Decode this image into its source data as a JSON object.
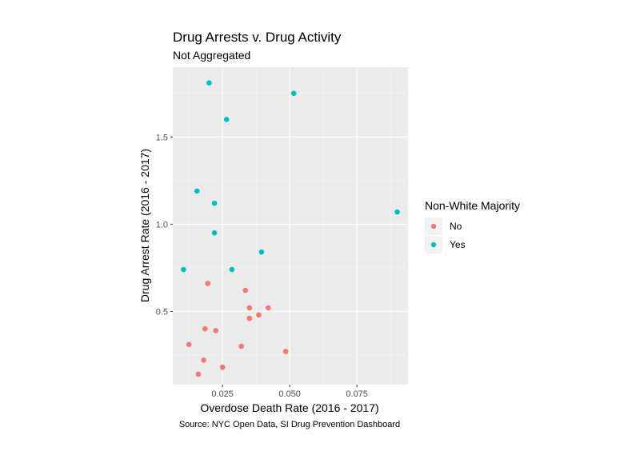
{
  "chart_data": {
    "type": "scatter",
    "title": "Drug Arrests v. Drug Activity",
    "subtitle": "Not Aggregated",
    "xlabel": "Overdose Death Rate (2016 - 2017)",
    "ylabel": "Drug Arrest Rate (2016 - 2017)",
    "caption": "Source: NYC Open Data, SI Drug Prevention Dashboard",
    "xlim": [
      0.0065,
      0.094
    ],
    "ylim": [
      0.08,
      1.9
    ],
    "x_ticks": [
      {
        "value": 0.025,
        "label": "0.025"
      },
      {
        "value": 0.05,
        "label": "0.050"
      },
      {
        "value": 0.075,
        "label": "0.075"
      }
    ],
    "y_ticks": [
      {
        "value": 0.5,
        "label": "0.5"
      },
      {
        "value": 1.0,
        "label": "1.0"
      },
      {
        "value": 1.5,
        "label": "1.5"
      }
    ],
    "grid": true,
    "legend": {
      "title": "Non-White Majority",
      "position": "right",
      "entries": [
        {
          "label": "No",
          "color": "#F8766D"
        },
        {
          "label": "Yes",
          "color": "#00BFC4"
        }
      ]
    },
    "series": [
      {
        "name": "No",
        "color": "#F8766D",
        "points": [
          {
            "x": 0.0195,
            "y": 0.66
          },
          {
            "x": 0.0335,
            "y": 0.62
          },
          {
            "x": 0.035,
            "y": 0.52
          },
          {
            "x": 0.035,
            "y": 0.46
          },
          {
            "x": 0.0385,
            "y": 0.48
          },
          {
            "x": 0.042,
            "y": 0.52
          },
          {
            "x": 0.0185,
            "y": 0.4
          },
          {
            "x": 0.0225,
            "y": 0.39
          },
          {
            "x": 0.0125,
            "y": 0.31
          },
          {
            "x": 0.032,
            "y": 0.3
          },
          {
            "x": 0.0485,
            "y": 0.27
          },
          {
            "x": 0.018,
            "y": 0.22
          },
          {
            "x": 0.025,
            "y": 0.18
          },
          {
            "x": 0.016,
            "y": 0.14
          }
        ]
      },
      {
        "name": "Yes",
        "color": "#00BFC4",
        "points": [
          {
            "x": 0.02,
            "y": 1.81
          },
          {
            "x": 0.0515,
            "y": 1.75
          },
          {
            "x": 0.0265,
            "y": 1.6
          },
          {
            "x": 0.0155,
            "y": 1.19
          },
          {
            "x": 0.022,
            "y": 1.12
          },
          {
            "x": 0.09,
            "y": 1.07
          },
          {
            "x": 0.022,
            "y": 0.95
          },
          {
            "x": 0.0395,
            "y": 0.84
          },
          {
            "x": 0.0105,
            "y": 0.74
          },
          {
            "x": 0.0285,
            "y": 0.74
          }
        ]
      }
    ]
  }
}
